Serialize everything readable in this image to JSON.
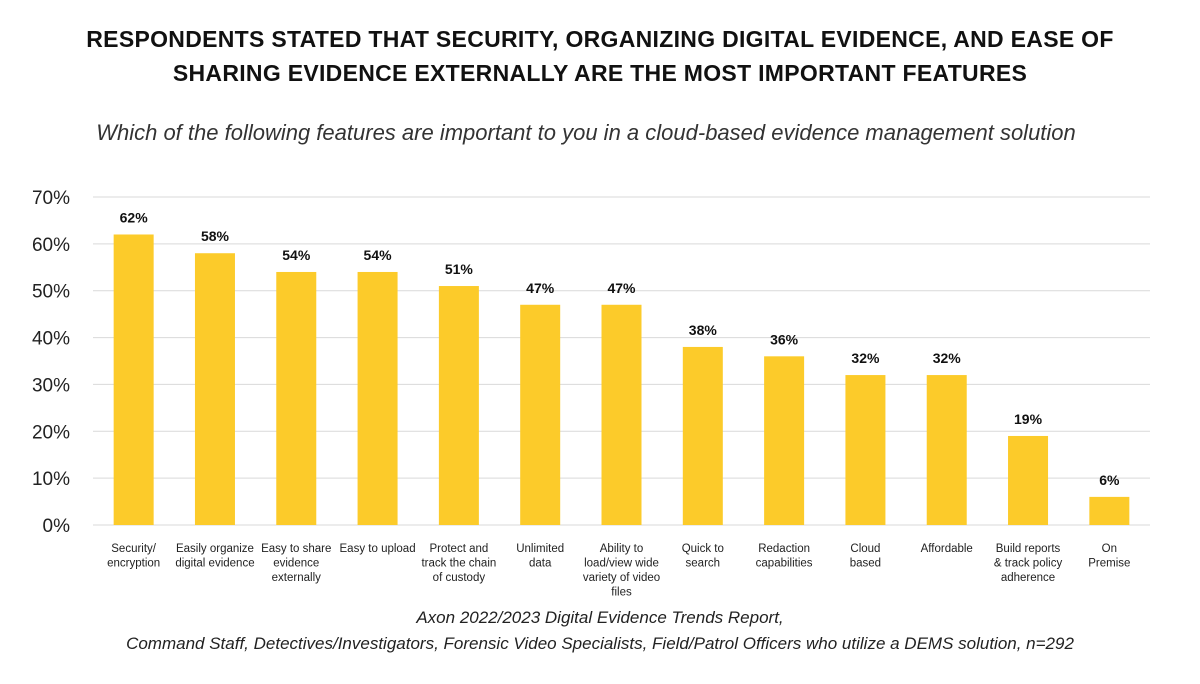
{
  "title_line1": "RESPONDENTS STATED THAT SECURITY, ORGANIZING DIGITAL EVIDENCE, AND EASE OF",
  "title_line2": "SHARING EVIDENCE EXTERNALLY ARE THE MOST IMPORTANT FEATURES",
  "subtitle": "Which of the following features are important to you in a cloud-based evidence management solution",
  "source_line1": "Axon 2022/2023 Digital Evidence Trends Report,",
  "source_line2": "Command Staff, Detectives/Investigators, Forensic Video Specialists, Field/Patrol Officers who utilize a DEMS solution, n=292",
  "chart_data": {
    "type": "bar",
    "categories": [
      [
        "Security/",
        "encryption"
      ],
      [
        "Easily organize",
        "digital evidence"
      ],
      [
        "Easy to share",
        "evidence",
        "externally"
      ],
      [
        "Easy to upload"
      ],
      [
        "Protect and",
        "track the chain",
        "of custody"
      ],
      [
        "Unlimited",
        "data"
      ],
      [
        "Ability to",
        "load/view wide",
        "variety of video",
        "files"
      ],
      [
        "Quick to",
        "search"
      ],
      [
        "Redaction",
        "capabilities"
      ],
      [
        "Cloud",
        "based"
      ],
      [
        "Affordable"
      ],
      [
        "Build reports",
        "& track policy",
        "adherence"
      ],
      [
        "On",
        "Premise"
      ]
    ],
    "values": [
      62,
      58,
      54,
      54,
      51,
      47,
      47,
      38,
      36,
      32,
      32,
      19,
      6
    ],
    "data_labels": [
      "62%",
      "58%",
      "54%",
      "54%",
      "51%",
      "47%",
      "47%",
      "38%",
      "36%",
      "32%",
      "32%",
      "19%",
      "6%"
    ],
    "yticks": [
      0,
      10,
      20,
      30,
      40,
      50,
      60,
      70
    ],
    "ytick_labels": [
      "0%",
      "10%",
      "20%",
      "30%",
      "40%",
      "50%",
      "60%",
      "70%"
    ],
    "ylim": [
      0,
      70
    ],
    "grid": true,
    "legend": "none",
    "bar_color": "#fccb2a",
    "grid_color": "#d9d9d9"
  }
}
